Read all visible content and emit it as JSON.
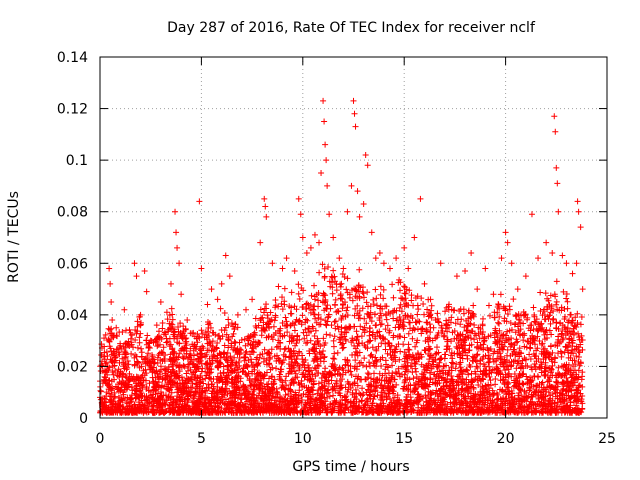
{
  "chart_data": {
    "type": "scatter",
    "title": "Day 287 of 2016, Rate Of TEC Index for receiver nclf",
    "xlabel": "GPS time / hours",
    "ylabel": "ROTI / TECUs",
    "xlim": [
      0,
      25
    ],
    "ylim": [
      0,
      0.14
    ],
    "xticks": [
      0,
      5,
      10,
      15,
      20,
      25
    ],
    "yticks": [
      0,
      0.02,
      0.04,
      0.06,
      0.08,
      0.1,
      0.12,
      0.14
    ],
    "xtick_labels": [
      "0",
      "5",
      "10",
      "15",
      "20",
      "25"
    ],
    "ytick_labels": [
      "0",
      "0.02",
      "0.04",
      "0.06",
      "0.08",
      "0.1",
      "0.12",
      "0.14"
    ],
    "grid": true,
    "marker": "+",
    "marker_color": "#ff0000",
    "series": [
      {
        "name": "ROTI",
        "points": [
          [
            0.0,
            0.008
          ],
          [
            0.1,
            0.022
          ],
          [
            0.2,
            0.031
          ],
          [
            0.3,
            0.018
          ],
          [
            0.45,
            0.058
          ],
          [
            0.5,
            0.052
          ],
          [
            0.55,
            0.045
          ],
          [
            0.6,
            0.038
          ],
          [
            0.8,
            0.035
          ],
          [
            1.0,
            0.028
          ],
          [
            1.2,
            0.042
          ],
          [
            1.5,
            0.033
          ],
          [
            1.7,
            0.06
          ],
          [
            1.8,
            0.055
          ],
          [
            2.0,
            0.04
          ],
          [
            2.2,
            0.057
          ],
          [
            2.3,
            0.049
          ],
          [
            2.5,
            0.03
          ],
          [
            2.8,
            0.036
          ],
          [
            3.0,
            0.045
          ],
          [
            3.3,
            0.041
          ],
          [
            3.5,
            0.052
          ],
          [
            3.7,
            0.08
          ],
          [
            3.75,
            0.072
          ],
          [
            3.8,
            0.066
          ],
          [
            3.9,
            0.06
          ],
          [
            4.0,
            0.048
          ],
          [
            4.3,
            0.038
          ],
          [
            4.6,
            0.033
          ],
          [
            4.9,
            0.084
          ],
          [
            5.0,
            0.058
          ],
          [
            5.3,
            0.044
          ],
          [
            5.5,
            0.05
          ],
          [
            5.8,
            0.046
          ],
          [
            6.0,
            0.052
          ],
          [
            6.2,
            0.063
          ],
          [
            6.4,
            0.055
          ],
          [
            6.8,
            0.04
          ],
          [
            7.2,
            0.042
          ],
          [
            7.5,
            0.046
          ],
          [
            7.9,
            0.068
          ],
          [
            8.1,
            0.085
          ],
          [
            8.15,
            0.082
          ],
          [
            8.2,
            0.078
          ],
          [
            8.5,
            0.06
          ],
          [
            8.8,
            0.051
          ],
          [
            9.0,
            0.058
          ],
          [
            9.2,
            0.062
          ],
          [
            9.6,
            0.057
          ],
          [
            9.8,
            0.085
          ],
          [
            9.9,
            0.079
          ],
          [
            10.0,
            0.07
          ],
          [
            10.2,
            0.064
          ],
          [
            10.4,
            0.066
          ],
          [
            10.6,
            0.071
          ],
          [
            10.8,
            0.068
          ],
          [
            10.9,
            0.095
          ],
          [
            11.0,
            0.123
          ],
          [
            11.05,
            0.115
          ],
          [
            11.1,
            0.106
          ],
          [
            11.15,
            0.1
          ],
          [
            11.2,
            0.09
          ],
          [
            11.3,
            0.079
          ],
          [
            11.5,
            0.07
          ],
          [
            11.8,
            0.062
          ],
          [
            12.0,
            0.058
          ],
          [
            12.2,
            0.08
          ],
          [
            12.4,
            0.09
          ],
          [
            12.5,
            0.123
          ],
          [
            12.55,
            0.118
          ],
          [
            12.6,
            0.113
          ],
          [
            12.7,
            0.088
          ],
          [
            12.8,
            0.078
          ],
          [
            13.0,
            0.083
          ],
          [
            13.1,
            0.102
          ],
          [
            13.2,
            0.098
          ],
          [
            13.4,
            0.072
          ],
          [
            13.6,
            0.062
          ],
          [
            13.8,
            0.064
          ],
          [
            14.0,
            0.06
          ],
          [
            14.3,
            0.058
          ],
          [
            14.6,
            0.062
          ],
          [
            15.0,
            0.066
          ],
          [
            15.2,
            0.058
          ],
          [
            15.5,
            0.07
          ],
          [
            15.8,
            0.085
          ],
          [
            16.0,
            0.052
          ],
          [
            16.3,
            0.046
          ],
          [
            16.8,
            0.06
          ],
          [
            17.2,
            0.042
          ],
          [
            17.6,
            0.055
          ],
          [
            18.0,
            0.057
          ],
          [
            18.3,
            0.064
          ],
          [
            18.6,
            0.05
          ],
          [
            19.0,
            0.058
          ],
          [
            19.4,
            0.048
          ],
          [
            19.8,
            0.062
          ],
          [
            20.0,
            0.072
          ],
          [
            20.1,
            0.068
          ],
          [
            20.3,
            0.06
          ],
          [
            20.6,
            0.05
          ],
          [
            21.0,
            0.055
          ],
          [
            21.3,
            0.079
          ],
          [
            21.6,
            0.062
          ],
          [
            22.0,
            0.068
          ],
          [
            22.3,
            0.064
          ],
          [
            22.4,
            0.117
          ],
          [
            22.45,
            0.111
          ],
          [
            22.5,
            0.097
          ],
          [
            22.55,
            0.091
          ],
          [
            22.6,
            0.08
          ],
          [
            22.8,
            0.063
          ],
          [
            23.0,
            0.06
          ],
          [
            23.3,
            0.056
          ],
          [
            23.5,
            0.06
          ],
          [
            23.55,
            0.084
          ],
          [
            23.6,
            0.08
          ],
          [
            23.7,
            0.074
          ],
          [
            23.8,
            0.05
          ]
        ],
        "dense_envelope": {
          "description": "Dense band of points; per-hour upper envelope of the bulk (hour, upper ROTI); lower bound about 0.002",
          "hour": [
            0,
            0.5,
            1,
            1.5,
            2,
            2.5,
            3,
            3.5,
            4,
            4.5,
            5,
            5.5,
            6,
            6.5,
            7,
            7.5,
            8,
            8.5,
            9,
            9.5,
            10,
            10.5,
            11,
            11.5,
            12,
            12.5,
            13,
            13.5,
            14,
            14.5,
            15,
            15.5,
            16,
            16.5,
            17,
            17.5,
            18,
            18.5,
            19,
            19.5,
            20,
            20.5,
            21,
            21.5,
            22,
            22.5,
            23,
            23.5,
            23.8
          ],
          "upper": [
            0.025,
            0.035,
            0.03,
            0.032,
            0.038,
            0.03,
            0.034,
            0.038,
            0.035,
            0.03,
            0.033,
            0.036,
            0.038,
            0.034,
            0.032,
            0.035,
            0.04,
            0.042,
            0.045,
            0.046,
            0.048,
            0.05,
            0.055,
            0.052,
            0.05,
            0.056,
            0.052,
            0.048,
            0.047,
            0.05,
            0.052,
            0.048,
            0.044,
            0.042,
            0.04,
            0.041,
            0.042,
            0.04,
            0.038,
            0.04,
            0.044,
            0.042,
            0.04,
            0.042,
            0.046,
            0.048,
            0.044,
            0.04,
            0.035
          ]
        }
      }
    ]
  }
}
